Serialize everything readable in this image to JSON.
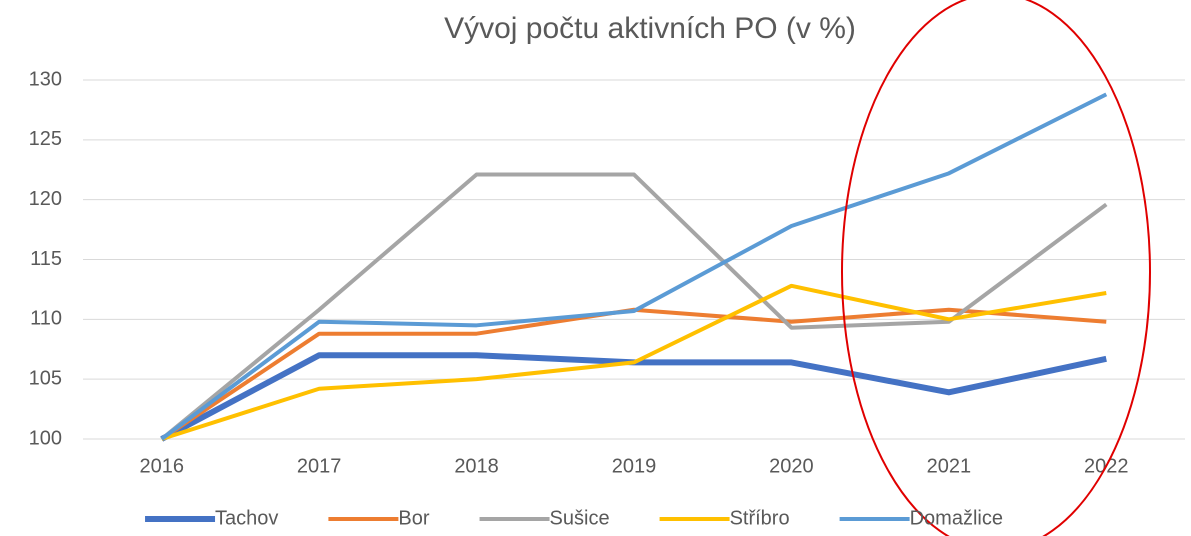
{
  "chart_data": {
    "type": "line",
    "title": "Vývoj počtu aktivních PO (v %)",
    "categories": [
      "2016",
      "2017",
      "2018",
      "2019",
      "2020",
      "2021",
      "2022"
    ],
    "series": [
      {
        "name": "Tachov",
        "color": "#4472c4",
        "values": [
          100,
          107,
          107,
          106.4,
          106.4,
          103.9,
          106.7
        ]
      },
      {
        "name": "Bor",
        "color": "#ed7d31",
        "values": [
          100,
          108.8,
          108.8,
          110.8,
          109.8,
          110.8,
          109.8
        ]
      },
      {
        "name": "Sušice",
        "color": "#a5a5a5",
        "values": [
          100,
          110.8,
          122.1,
          122.1,
          109.3,
          109.8,
          119.6
        ]
      },
      {
        "name": "Stříbro",
        "color": "#ffc000",
        "values": [
          100,
          104.2,
          105,
          106.4,
          112.8,
          110,
          112.2
        ]
      },
      {
        "name": "Domažlice",
        "color": "#5b9bd5",
        "values": [
          100,
          109.8,
          109.5,
          110.7,
          117.8,
          122.2,
          128.8
        ]
      }
    ],
    "ylim": [
      100,
      130
    ],
    "yticks": [
      100,
      105,
      110,
      115,
      120,
      125,
      130
    ],
    "grid": true,
    "legend": "bottom"
  }
}
